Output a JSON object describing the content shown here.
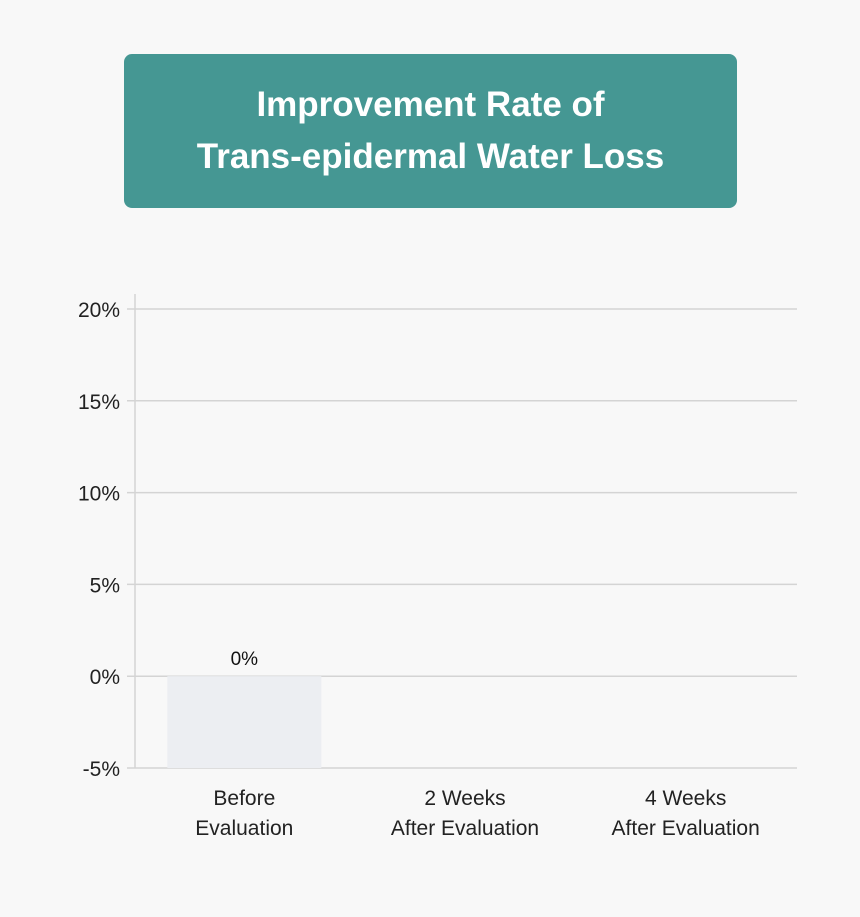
{
  "title_lines": [
    "Improvement Rate of",
    "Trans-epidermal Water Loss"
  ],
  "colors": {
    "title_bg": "#459793",
    "bar": "#eceef2",
    "grid": "#d4d4d4",
    "background": "#f8f8f8"
  },
  "chart_data": {
    "type": "bar",
    "title": "Improvement Rate of Trans-epidermal Water Loss",
    "categories": [
      [
        "Before",
        "Evaluation"
      ],
      [
        "2 Weeks",
        "After Evaluation"
      ],
      [
        "4 Weeks",
        "After Evaluation"
      ]
    ],
    "values": [
      0,
      null,
      null
    ],
    "data_labels": [
      "0%",
      "",
      ""
    ],
    "ylim": [
      -5,
      20
    ],
    "yticks": [
      -5,
      0,
      5,
      10,
      15,
      20
    ],
    "ytick_labels": [
      "-5%",
      "0%",
      "5%",
      "10%",
      "15%",
      "20%"
    ],
    "grid": true,
    "xlabel": "",
    "ylabel": ""
  }
}
